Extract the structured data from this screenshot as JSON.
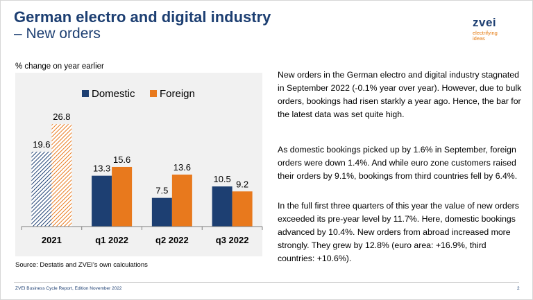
{
  "header": {
    "title_line1": "German electro and digital industry",
    "title_line2": "– New orders"
  },
  "logo": {
    "word": "zvei",
    "tagline_line1": "electrifying",
    "tagline_line2": "ideas"
  },
  "chart_data": {
    "type": "bar",
    "title": "",
    "ylabel": "% change on year earlier",
    "categories": [
      "2021",
      "q1 2022",
      "q2 2022",
      "q3 2022"
    ],
    "series": [
      {
        "name": "Domestic",
        "values": [
          19.6,
          13.3,
          7.5,
          10.5
        ],
        "color": "#1d3f72"
      },
      {
        "name": "Foreign",
        "values": [
          26.8,
          15.6,
          13.6,
          9.2
        ],
        "color": "#e8791d"
      }
    ],
    "hatched_category": "2021",
    "data_labels": true,
    "legend": "top",
    "ylim": [
      0,
      33
    ],
    "grid": false
  },
  "text_blocks": [
    "New orders in the German electro and digital industry stagnated in September 2022 (-0.1% year over year). However, due to bulk orders, bookings had risen starkly a year ago. Hence, the bar for the latest data was set quite high.",
    "As domestic bookings picked up by 1.6% in September, foreign orders were down 1.4%. And while euro zone customers raised their orders by 9.1%, bookings from third countries fell by 6.4%.",
    "In the full first three quarters of this year the value of new orders exceeded its pre-year level by 11.7%. Here, domestic bookings advanced by 10.4%. New orders from abroad increased more strongly. They grew by 12.8% (euro area: +16.9%, third countries: +10.6%)."
  ],
  "source": "Source: Destatis and ZVEI's own calculations",
  "footer": {
    "text": "ZVEI Business Cycle Report, Edition November 2022",
    "page": "2"
  },
  "colors": {
    "brand_blue": "#1d3f72",
    "brand_orange": "#e8791d",
    "axis": "#808080"
  }
}
